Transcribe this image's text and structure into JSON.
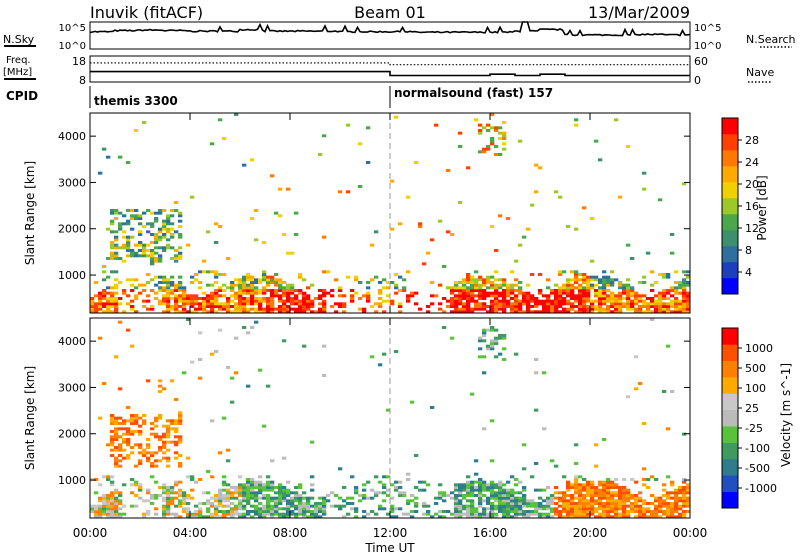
{
  "header": {
    "station": "Inuvik (fitACF)",
    "beam": "Beam 01",
    "date": "13/Mar/2009"
  },
  "strip_labels": {
    "nsky": "N.Sky",
    "nsky_ticks": [
      "10^5",
      "10^0"
    ],
    "nsearch": "N.Search",
    "nsearch_ticks": [
      "10^5",
      "10^0"
    ],
    "freq_line1": "Freq.",
    "freq_line2": "[MHz]",
    "freq_ticks": [
      "18",
      "8"
    ],
    "nave": "Nave",
    "nave_ticks": [
      "60",
      "0"
    ],
    "cpid": "CPID"
  },
  "cpid_segments": [
    {
      "label": "themis 3300",
      "start_hour": 0,
      "end_hour": 12
    },
    {
      "label": "normalsound (fast) 157",
      "start_hour": 12,
      "end_hour": 24
    }
  ],
  "colorbars": {
    "power": {
      "title": "Power [dB]",
      "ticks": [
        "28",
        "24",
        "20",
        "16",
        "12",
        "8",
        "4"
      ],
      "colors": [
        "#0000ff",
        "#1b3fc0",
        "#2f6fa0",
        "#3e8f6e",
        "#4aa84a",
        "#9dc82a",
        "#f0d000",
        "#ffaa00",
        "#ff7800",
        "#ff4000",
        "#ff0000"
      ]
    },
    "velocity": {
      "title": "Velocity [m s^-1]",
      "ticks": [
        "1000",
        "500",
        "100",
        "25",
        "-25",
        "-100",
        "-500",
        "-1000"
      ],
      "colors": [
        "#0000ff",
        "#1f4fc0",
        "#2e7c8c",
        "#3e9a5e",
        "#58c23a",
        "#bbbbbb",
        "#c8c8c8",
        "#ffaa00",
        "#ff8000",
        "#ff5000",
        "#ff0000"
      ]
    }
  },
  "chart_data": [
    {
      "type": "line",
      "title": "N.Sky / N.Search",
      "x_start": "00:00",
      "x_end": "00:00",
      "y_scale": "log",
      "ylim": [
        "10^0",
        "10^5"
      ],
      "series": [
        {
          "name": "N.Sky",
          "values_hourly": [
            3.2,
            3.4,
            3.5,
            3.4,
            3.3,
            3.3,
            3.6,
            3.3,
            3.3,
            3.3,
            3.2,
            3.2,
            3.2,
            3.1,
            3.1,
            3.1,
            3.1,
            3.3,
            3.6,
            2.6,
            2.6,
            2.6,
            2.7,
            2.6
          ]
        }
      ]
    },
    {
      "type": "line",
      "title": "Freq. [MHz] / Nave",
      "x_start": "00:00",
      "x_end": "00:00",
      "ylim": [
        8,
        18
      ],
      "series": [
        {
          "name": "Freq. [MHz]",
          "values_hourly": [
            12,
            12,
            12,
            12,
            12,
            12,
            12,
            12,
            12,
            12,
            12,
            12,
            10.5,
            10.5,
            10.5,
            10.5,
            11,
            10.5,
            11,
            10.5,
            10.5,
            10.5,
            10.5,
            10.5
          ]
        }
      ]
    },
    {
      "type": "heatmap",
      "title": "",
      "xlabel": "",
      "ylabel": "Slant Range [km]",
      "xlim_hours": [
        0,
        24
      ],
      "ylim": [
        180,
        4500
      ],
      "y_ticks": [
        "4000",
        "3000",
        "2000",
        "1000"
      ],
      "x_ticks": [
        "00:00",
        "04:00",
        "08:00",
        "12:00",
        "16:00",
        "20:00",
        "00:00"
      ],
      "colorbar": "Power [dB]"
    },
    {
      "type": "heatmap",
      "title": "",
      "xlabel": "Time UT",
      "ylabel": "Slant Range [km]",
      "xlim_hours": [
        0,
        24
      ],
      "ylim": [
        180,
        4500
      ],
      "y_ticks": [
        "4000",
        "3000",
        "2000",
        "1000"
      ],
      "x_ticks": [
        "00:00",
        "04:00",
        "08:00",
        "12:00",
        "16:00",
        "20:00",
        "00:00"
      ],
      "colorbar": "Velocity [m s^-1]"
    }
  ]
}
